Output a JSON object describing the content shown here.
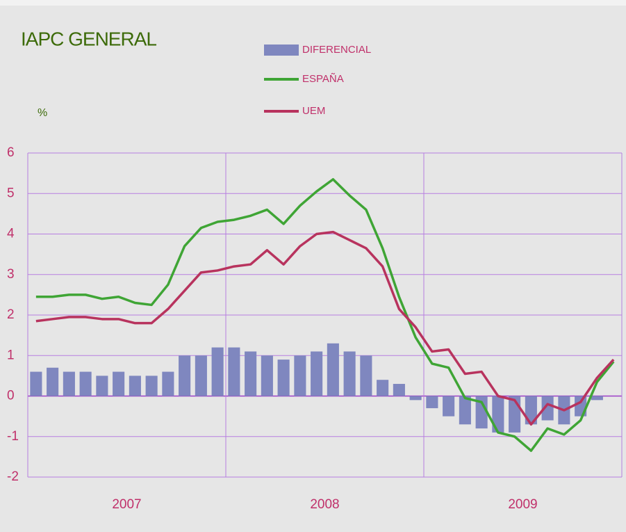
{
  "chart_data": {
    "type": "bar_line",
    "title": "IAPC GENERAL",
    "y_axis_label": "%",
    "years": [
      "2007",
      "2008",
      "2009"
    ],
    "ylim": [
      -2,
      6
    ],
    "yticks": [
      -2,
      -1,
      0,
      1,
      2,
      3,
      4,
      5,
      6
    ],
    "grid": true,
    "series": [
      {
        "name": "DIFERENCIAL",
        "type": "bar",
        "color": "#7f87bf",
        "values": [
          0.6,
          0.7,
          0.6,
          0.6,
          0.5,
          0.6,
          0.5,
          0.5,
          0.6,
          1.0,
          1.0,
          1.2,
          1.2,
          1.1,
          1.0,
          0.9,
          1.0,
          1.1,
          1.3,
          1.1,
          1.0,
          0.4,
          0.3,
          -0.1,
          -0.3,
          -0.5,
          -0.7,
          -0.8,
          -0.9,
          -0.9,
          -0.7,
          -0.6,
          -0.7,
          -0.5,
          -0.1,
          null
        ]
      },
      {
        "name": "ESPAÑA",
        "type": "line",
        "color": "#3fa535",
        "values": [
          2.45,
          2.45,
          2.5,
          2.5,
          2.4,
          2.45,
          2.3,
          2.25,
          2.75,
          3.7,
          4.15,
          4.3,
          4.35,
          4.45,
          4.6,
          4.25,
          4.7,
          5.05,
          5.35,
          4.95,
          4.6,
          3.65,
          2.45,
          1.45,
          0.8,
          0.7,
          -0.05,
          -0.15,
          -0.9,
          -1.0,
          -1.35,
          -0.8,
          -0.95,
          -0.6,
          0.35,
          0.85
        ]
      },
      {
        "name": "UEM",
        "type": "line",
        "color": "#b8335e",
        "values": [
          1.85,
          1.9,
          1.95,
          1.95,
          1.9,
          1.9,
          1.8,
          1.8,
          2.15,
          2.6,
          3.05,
          3.1,
          3.2,
          3.25,
          3.6,
          3.25,
          3.7,
          4.0,
          4.05,
          3.85,
          3.65,
          3.2,
          2.15,
          1.7,
          1.1,
          1.15,
          0.55,
          0.6,
          0.0,
          -0.1,
          -0.7,
          -0.2,
          -0.35,
          -0.15,
          0.45,
          0.9
        ]
      }
    ]
  }
}
